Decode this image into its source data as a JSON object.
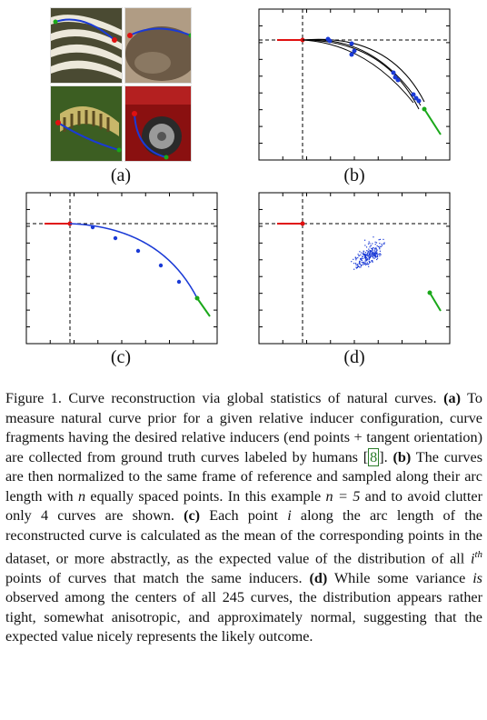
{
  "panels": {
    "a": {
      "label": "(a)"
    },
    "b": {
      "label": "(b)"
    },
    "c": {
      "label": "(c)"
    },
    "d": {
      "label": "(d)"
    }
  },
  "photos": [
    {
      "name": "zebra",
      "colors": [
        "#5b5a3e",
        "#e8e4d6"
      ]
    },
    {
      "name": "seal",
      "colors": [
        "#a08a72",
        "#6c5a46"
      ]
    },
    {
      "name": "caterpillar",
      "colors": [
        "#4a6a2a",
        "#c8b76a"
      ]
    },
    {
      "name": "car",
      "colors": [
        "#a41818",
        "#3a3a3a"
      ]
    }
  ],
  "colors": {
    "inducer": "#e01010",
    "end_inducer": "#1aa81a",
    "curve": "#1a3ad6",
    "axis": "#000000",
    "grid": "#cccccc"
  },
  "caption": {
    "figure_no": "Figure 1.",
    "text_1": " Curve reconstruction via global statistics of natural curves. ",
    "a_label": "(a)",
    "text_a": " To measure natural curve prior for a given relative inducer configuration, curve fragments having the desired relative inducers (end points + tangent orientation) are collected from ground truth curves labeled by humans ",
    "cite": "8",
    "text_a2": ". ",
    "b_label": "(b)",
    "text_b": " The curves are then normalized to the same frame of reference and sampled along their arc length with ",
    "n_var": "n",
    "text_b2": " equally spaced points. In this example ",
    "n_eq": "n = 5",
    "text_b3": " and to avoid clutter only 4 curves are shown. ",
    "c_label": "(c)",
    "text_c": " Each point ",
    "i_var": "i",
    "text_c2": " along the arc length of the reconstructed curve is calculated as the mean of the corresponding points in the dataset, or more abstractly, as the expected value of the distribution of all ",
    "ith_i": "i",
    "ith_sup": "th",
    "text_c3": " points of curves that match the same inducers. ",
    "d_label": "(d)",
    "text_d": " While some variance ",
    "is_word": "is",
    "text_d2": " observed among the centers of all 245 curves, the distribution appears rather tight, somewhat anisotropic, and approximately normal, suggesting that the expected value nicely represents the likely outcome."
  }
}
